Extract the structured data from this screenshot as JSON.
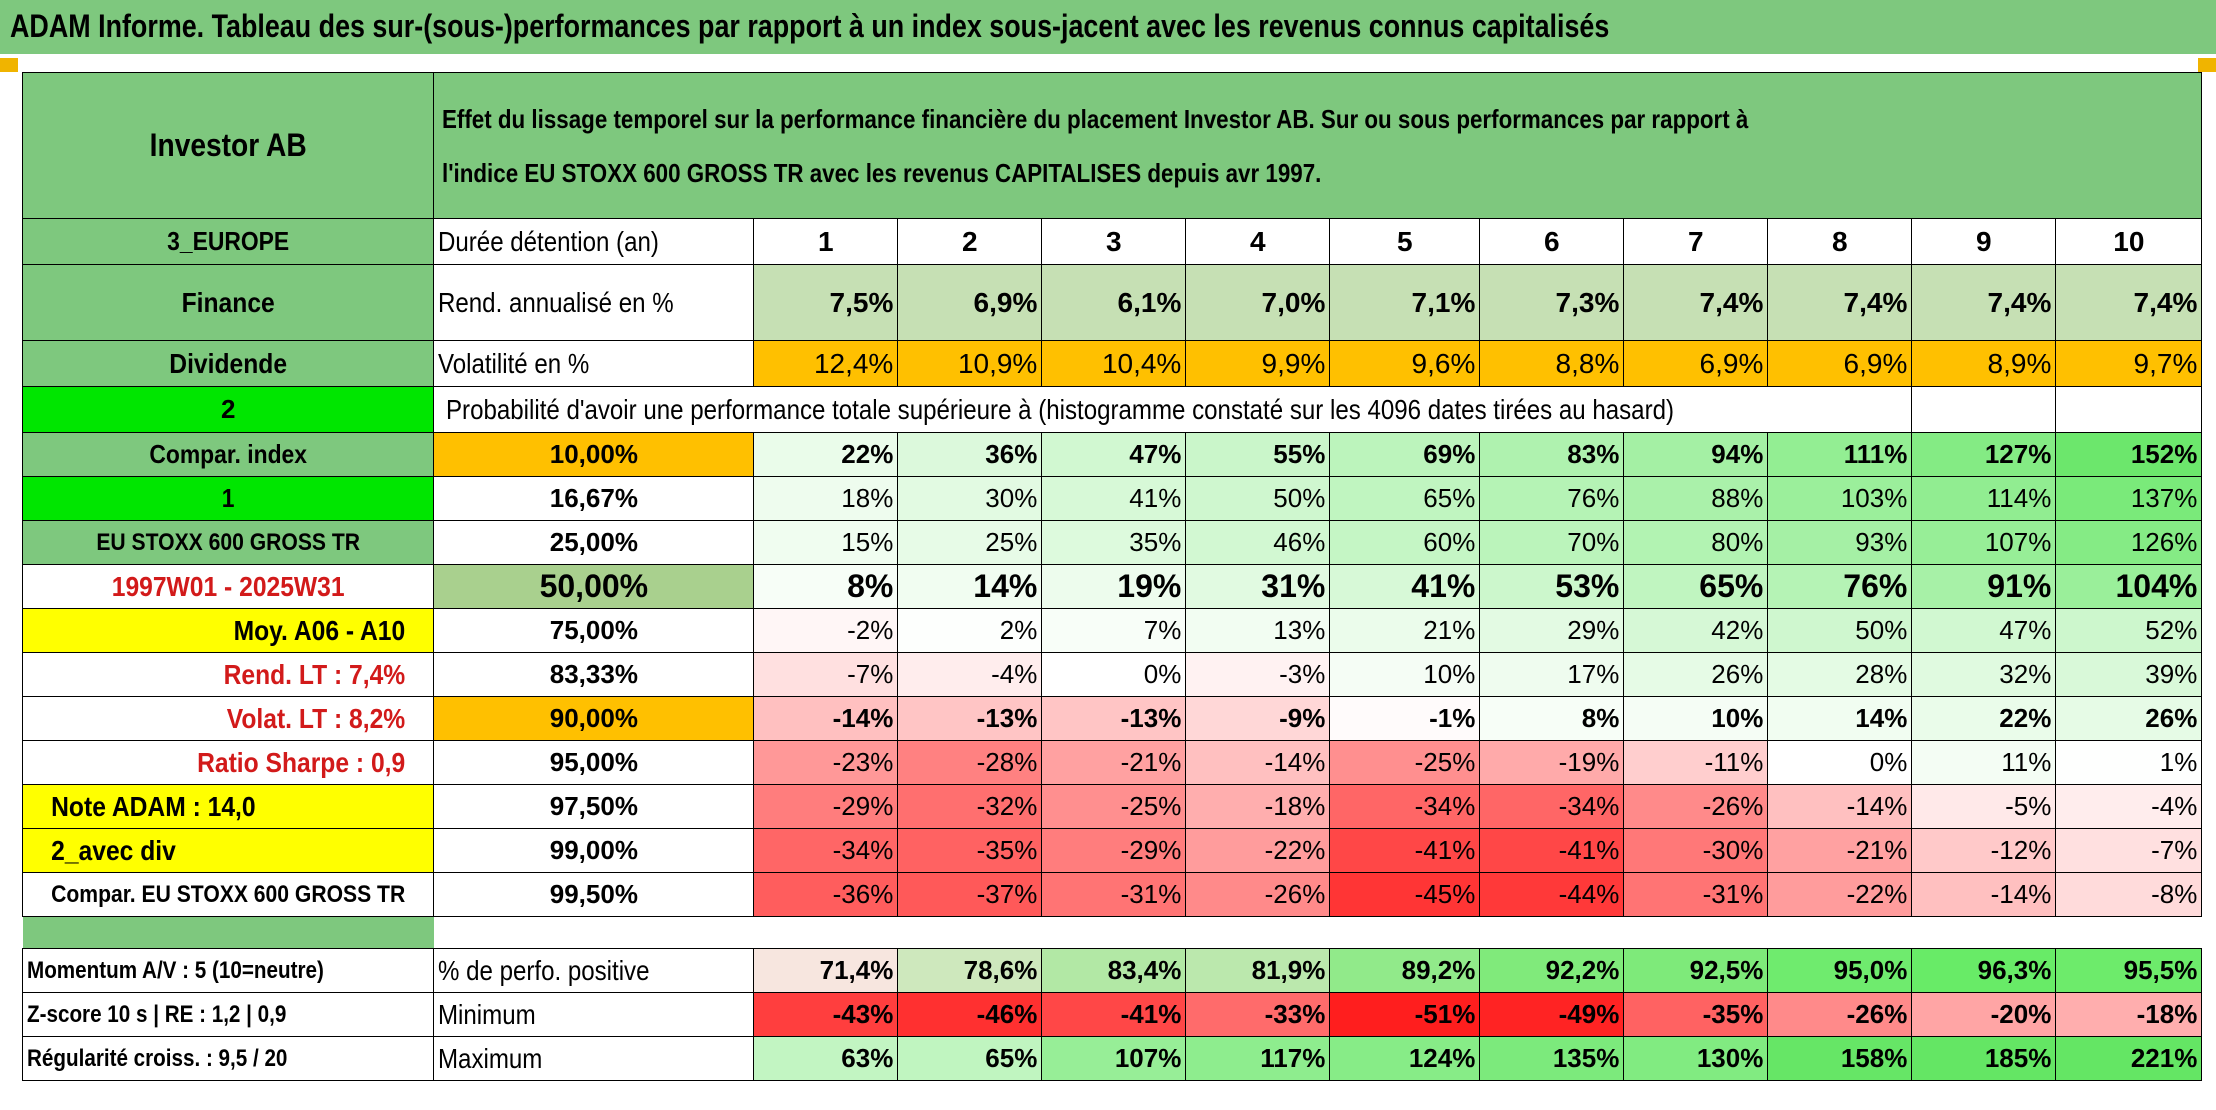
{
  "title": "ADAM Informe. Tableau des sur-(sous-)performances par rapport à un index sous-jacent avec les revenus connus capitalisés",
  "header": {
    "asset": "Investor AB",
    "description_line1": "Effet du lissage temporel sur la performance financière du placement Investor AB. Sur ou sous performances par rapport à",
    "description_line2": "l'indice EU STOXX 600 GROSS TR avec les revenus CAPITALISES depuis avr 1997."
  },
  "side": {
    "region": "3_EUROPE",
    "sector": "Finance",
    "style": "Dividende",
    "n2": "2",
    "compar_index": "Compar. index",
    "n1": "1",
    "index_name": "EU STOXX 600 GROSS TR",
    "period": "1997W01 - 2025W31",
    "moy": "Moy. A06 - A10",
    "rend_lt": "Rend. LT :   7,4%",
    "volat_lt": "Volat. LT :   8,2%",
    "sharpe": "Ratio Sharpe :   0,9",
    "note": "Note ADAM : 14,0",
    "avec_div": "2_avec div",
    "compar_full": "Compar. EU STOXX 600 GROSS TR",
    "momentum": "Momentum A/V : 5 (10=neutre)",
    "zscore": "Z-score 10 s | RE : 1,2 | 0,9",
    "regularite": "Régularité croiss. : 9,5 / 20"
  },
  "row_labels": {
    "duree": "Durée détention (an)",
    "rend": "Rend. annualisé en %",
    "vol": "Volatilité en %",
    "proba": "Probabilité d'avoir une performance totale supérieure à (histogramme constaté sur les 4096 dates tirées au hasard)",
    "pct_pos": "% de perfo. positive",
    "minimum": "Minimum",
    "maximum": "Maximum"
  },
  "years": [
    "1",
    "2",
    "3",
    "4",
    "5",
    "6",
    "7",
    "8",
    "9",
    "10"
  ],
  "rend": [
    "7,5%",
    "6,9%",
    "6,1%",
    "7,0%",
    "7,1%",
    "7,3%",
    "7,4%",
    "7,4%",
    "7,4%",
    "7,4%"
  ],
  "vol": [
    "12,4%",
    "10,9%",
    "10,4%",
    "9,9%",
    "9,6%",
    "8,8%",
    "6,9%",
    "6,9%",
    "8,9%",
    "9,7%"
  ],
  "percentile_rows": [
    {
      "p": "10,00%",
      "v": [
        "22%",
        "36%",
        "47%",
        "55%",
        "69%",
        "83%",
        "94%",
        "111%",
        "127%",
        "152%"
      ]
    },
    {
      "p": "16,67%",
      "v": [
        "18%",
        "30%",
        "41%",
        "50%",
        "65%",
        "76%",
        "88%",
        "103%",
        "114%",
        "137%"
      ]
    },
    {
      "p": "25,00%",
      "v": [
        "15%",
        "25%",
        "35%",
        "46%",
        "60%",
        "70%",
        "80%",
        "93%",
        "107%",
        "126%"
      ]
    },
    {
      "p": "50,00%",
      "v": [
        "8%",
        "14%",
        "19%",
        "31%",
        "41%",
        "53%",
        "65%",
        "76%",
        "91%",
        "104%"
      ]
    },
    {
      "p": "75,00%",
      "v": [
        "-2%",
        "2%",
        "7%",
        "13%",
        "21%",
        "29%",
        "42%",
        "50%",
        "47%",
        "52%"
      ]
    },
    {
      "p": "83,33%",
      "v": [
        "-7%",
        "-4%",
        "0%",
        "-3%",
        "10%",
        "17%",
        "26%",
        "28%",
        "32%",
        "39%"
      ]
    },
    {
      "p": "90,00%",
      "v": [
        "-14%",
        "-13%",
        "-13%",
        "-9%",
        "-1%",
        "8%",
        "10%",
        "14%",
        "22%",
        "26%"
      ]
    },
    {
      "p": "95,00%",
      "v": [
        "-23%",
        "-28%",
        "-21%",
        "-14%",
        "-25%",
        "-19%",
        "-11%",
        "0%",
        "11%",
        "1%"
      ]
    },
    {
      "p": "97,50%",
      "v": [
        "-29%",
        "-32%",
        "-25%",
        "-18%",
        "-34%",
        "-34%",
        "-26%",
        "-14%",
        "-5%",
        "-4%"
      ]
    },
    {
      "p": "99,00%",
      "v": [
        "-34%",
        "-35%",
        "-29%",
        "-22%",
        "-41%",
        "-41%",
        "-30%",
        "-21%",
        "-12%",
        "-7%"
      ]
    },
    {
      "p": "99,50%",
      "v": [
        "-36%",
        "-37%",
        "-31%",
        "-26%",
        "-45%",
        "-44%",
        "-31%",
        "-22%",
        "-14%",
        "-8%"
      ]
    }
  ],
  "pct_pos": [
    "71,4%",
    "78,6%",
    "83,4%",
    "81,9%",
    "89,2%",
    "92,2%",
    "92,5%",
    "95,0%",
    "96,3%",
    "95,5%"
  ],
  "minimum": [
    "-43%",
    "-46%",
    "-41%",
    "-33%",
    "-51%",
    "-49%",
    "-35%",
    "-26%",
    "-20%",
    "-18%"
  ],
  "maximum": [
    "63%",
    "65%",
    "107%",
    "117%",
    "124%",
    "135%",
    "130%",
    "158%",
    "185%",
    "221%"
  ],
  "colors": {
    "header_green": "#7ec87e",
    "bright_green": "#00e600",
    "yellow": "#ffff00",
    "orange": "#ffc000",
    "rend_green": "#c6e0b4",
    "median_green": "#a9d08e",
    "text_red": "#d21a1a"
  }
}
